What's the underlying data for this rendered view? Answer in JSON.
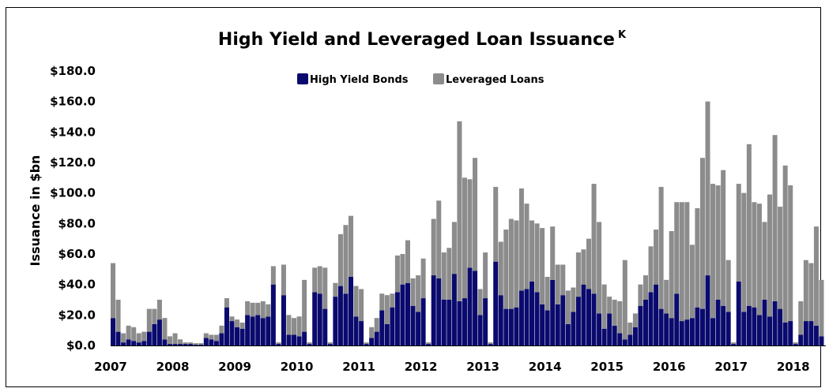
{
  "chart_data": {
    "type": "bar",
    "stacked": true,
    "title": "High Yield and Leveraged Loan Issuance",
    "title_superscript": "K",
    "xlabel": "",
    "ylabel": "Issuance in $bn",
    "ylim": [
      0,
      180
    ],
    "yticks": [
      "$0.0",
      "$20.0",
      "$40.0",
      "$60.0",
      "$80.0",
      "$100.0",
      "$120.0",
      "$140.0",
      "$160.0",
      "$180.0"
    ],
    "year_labels": [
      "2007",
      "2008",
      "2009",
      "2010",
      "2011",
      "2012",
      "2013",
      "2014",
      "2015",
      "2016",
      "2017",
      "2018"
    ],
    "grid": false,
    "legend_position": "top-center",
    "start": "2007-01",
    "series": [
      {
        "name": "High Yield Bonds",
        "color": "#0a0a6e",
        "values": [
          18,
          9,
          2,
          4,
          3,
          2,
          3,
          9,
          14,
          17,
          4,
          1,
          1,
          1,
          1,
          1,
          0.5,
          0.5,
          5,
          4,
          3,
          8,
          25,
          16,
          12,
          11,
          20,
          19,
          20,
          18,
          19,
          40,
          1,
          33,
          7,
          7,
          6,
          9,
          1,
          35,
          34,
          24,
          1,
          32,
          39,
          34,
          45,
          19,
          16,
          1,
          5,
          9,
          23,
          14,
          25,
          35,
          40,
          41,
          26,
          22,
          31,
          1,
          46,
          44,
          30,
          30,
          47,
          29,
          31,
          51,
          49,
          20,
          31,
          1,
          55,
          33,
          24,
          24,
          25,
          36,
          37,
          42,
          35,
          27,
          23,
          43,
          27,
          33,
          14,
          22,
          32,
          40,
          37,
          34,
          21,
          11,
          21,
          13,
          8,
          4,
          7,
          12,
          26,
          30,
          35,
          40,
          24,
          21,
          18,
          34,
          16,
          17,
          18,
          25,
          24,
          46,
          18,
          30,
          26,
          22,
          1,
          42,
          22,
          26,
          25,
          20,
          30,
          19,
          29,
          24,
          15,
          16,
          1,
          7,
          16,
          16,
          13,
          6
        ]
      },
      {
        "name": "Leveraged Loans",
        "color": "#8c8c8c",
        "values": [
          36,
          21,
          6,
          9,
          9,
          6,
          6,
          15,
          10,
          13,
          14,
          5,
          7,
          3,
          1,
          1,
          1,
          1,
          3,
          3,
          4,
          5,
          6,
          3,
          5,
          4,
          9,
          9,
          8,
          11,
          8,
          12,
          1,
          20,
          13,
          11,
          13,
          34,
          1,
          16,
          18,
          27,
          1,
          9,
          34,
          45,
          40,
          20,
          21,
          1,
          7,
          9,
          11,
          19,
          9,
          24,
          20,
          28,
          18,
          24,
          26,
          1,
          37,
          51,
          31,
          34,
          34,
          118,
          79,
          58,
          74,
          17,
          30,
          1,
          49,
          35,
          52,
          59,
          57,
          67,
          56,
          40,
          45,
          50,
          22,
          35,
          26,
          20,
          22,
          16,
          29,
          23,
          33,
          72,
          60,
          29,
          11,
          17,
          21,
          52,
          8,
          9,
          14,
          16,
          30,
          36,
          80,
          22,
          57,
          60,
          78,
          77,
          48,
          65,
          99,
          114,
          88,
          75,
          89,
          34,
          1,
          64,
          78,
          106,
          69,
          73,
          51,
          80,
          109,
          67,
          103,
          89,
          1,
          22,
          40,
          38,
          65,
          37
        ]
      }
    ]
  }
}
